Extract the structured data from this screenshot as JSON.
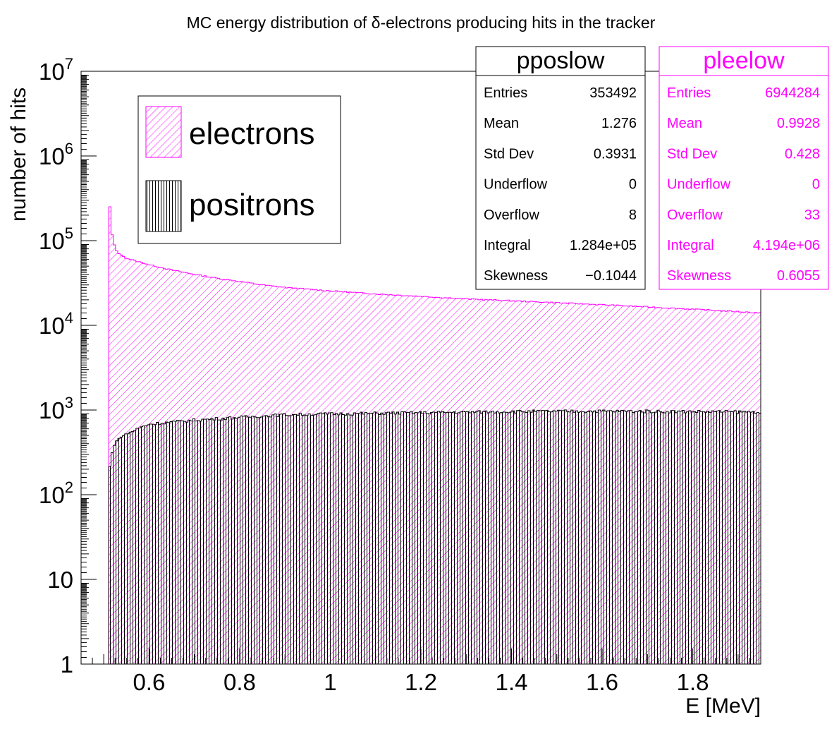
{
  "chart_data": {
    "type": "histogram",
    "title": "MC energy distribution of δ-electrons producing hits in the tracker",
    "xlabel": "E [MeV]",
    "ylabel": "number of hits",
    "log_y": true,
    "grid": false,
    "xlim": [
      0.45,
      1.95
    ],
    "ylim": [
      1,
      10000000
    ],
    "x_ticks": [
      "0.6",
      "0.8",
      "1",
      "1.2",
      "1.4",
      "1.6",
      "1.8"
    ],
    "y_ticks": [
      {
        "base": "1",
        "exp": ""
      },
      {
        "base": "10",
        "exp": ""
      },
      {
        "base": "10",
        "exp": "2"
      },
      {
        "base": "10",
        "exp": "3"
      },
      {
        "base": "10",
        "exp": "4"
      },
      {
        "base": "10",
        "exp": "5"
      },
      {
        "base": "10",
        "exp": "6"
      },
      {
        "base": "10",
        "exp": "7"
      }
    ],
    "legend": {
      "placement": "top-left",
      "entries": [
        {
          "label": "electrons",
          "color": "#ff00ff",
          "hatch": "diagonal"
        },
        {
          "label": "positrons",
          "color": "#000000",
          "hatch": "vertical"
        }
      ]
    },
    "series": [
      {
        "name": "electrons",
        "color": "#ff00ff",
        "points": [
          [
            0.511,
            480000
          ],
          [
            0.515,
            170000
          ],
          [
            0.52,
            100000
          ],
          [
            0.53,
            72000
          ],
          [
            0.55,
            62000
          ],
          [
            0.6,
            52000
          ],
          [
            0.65,
            45000
          ],
          [
            0.7,
            40000
          ],
          [
            0.75,
            36000
          ],
          [
            0.8,
            33000
          ],
          [
            0.85,
            30000
          ],
          [
            0.9,
            28000
          ],
          [
            1.0,
            25500
          ],
          [
            1.1,
            23500
          ],
          [
            1.2,
            22000
          ],
          [
            1.3,
            20500
          ],
          [
            1.4,
            19500
          ],
          [
            1.5,
            18500
          ],
          [
            1.6,
            17500
          ],
          [
            1.7,
            16500
          ],
          [
            1.8,
            15500
          ],
          [
            1.9,
            14500
          ],
          [
            1.95,
            14000
          ]
        ]
      },
      {
        "name": "positrons",
        "color": "#000000",
        "points": [
          [
            0.511,
            180
          ],
          [
            0.52,
            350
          ],
          [
            0.53,
            450
          ],
          [
            0.55,
            520
          ],
          [
            0.58,
            620
          ],
          [
            0.6,
            680
          ],
          [
            0.65,
            720
          ],
          [
            0.7,
            760
          ],
          [
            0.8,
            820
          ],
          [
            0.9,
            880
          ],
          [
            1.0,
            900
          ],
          [
            1.2,
            930
          ],
          [
            1.4,
            960
          ],
          [
            1.6,
            970
          ],
          [
            1.8,
            960
          ],
          [
            1.95,
            950
          ]
        ]
      }
    ],
    "stat_boxes": [
      {
        "name": "pposlow",
        "color": "#000000",
        "rows": [
          {
            "label": "Entries",
            "value": "353492"
          },
          {
            "label": "Mean",
            "value": "1.276"
          },
          {
            "label": "Std Dev",
            "value": "0.3931"
          },
          {
            "label": "Underflow",
            "value": "0"
          },
          {
            "label": "Overflow",
            "value": "8"
          },
          {
            "label": "Integral",
            "value": "1.284e+05"
          },
          {
            "label": "Skewness",
            "value": "−0.1044"
          }
        ]
      },
      {
        "name": "pleelow",
        "color": "#ff00ff",
        "rows": [
          {
            "label": "Entries",
            "value": "6944284"
          },
          {
            "label": "Mean",
            "value": "0.9928"
          },
          {
            "label": "Std Dev",
            "value": "0.428"
          },
          {
            "label": "Underflow",
            "value": "0"
          },
          {
            "label": "Overflow",
            "value": "33"
          },
          {
            "label": "Integral",
            "value": "4.194e+06"
          },
          {
            "label": "Skewness",
            "value": "0.6055"
          }
        ]
      }
    ]
  }
}
